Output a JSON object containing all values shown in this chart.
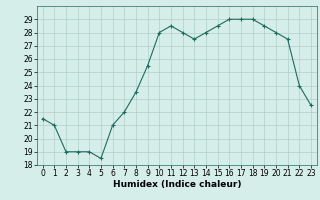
{
  "x": [
    0,
    1,
    2,
    3,
    4,
    5,
    6,
    7,
    8,
    9,
    10,
    11,
    12,
    13,
    14,
    15,
    16,
    17,
    18,
    19,
    20,
    21,
    22,
    23
  ],
  "y": [
    21.5,
    21.0,
    19.0,
    19.0,
    19.0,
    18.5,
    21.0,
    22.0,
    23.5,
    25.5,
    28.0,
    28.5,
    28.0,
    27.5,
    28.0,
    28.5,
    29.0,
    29.0,
    29.0,
    28.5,
    28.0,
    27.5,
    24.0,
    22.5
  ],
  "line_color": "#1e6b5e",
  "marker": "+",
  "bg_color": "#d6eeea",
  "grid_color": "#b0cfca",
  "xlabel": "Humidex (Indice chaleur)",
  "ylim": [
    18,
    30
  ],
  "xlim": [
    -0.5,
    23.5
  ],
  "yticks": [
    18,
    19,
    20,
    21,
    22,
    23,
    24,
    25,
    26,
    27,
    28,
    29
  ],
  "xticks": [
    0,
    1,
    2,
    3,
    4,
    5,
    6,
    7,
    8,
    9,
    10,
    11,
    12,
    13,
    14,
    15,
    16,
    17,
    18,
    19,
    20,
    21,
    22,
    23
  ],
  "tick_fontsize": 5.5,
  "xlabel_fontsize": 6.5,
  "line_width": 0.8,
  "marker_size": 3.5
}
